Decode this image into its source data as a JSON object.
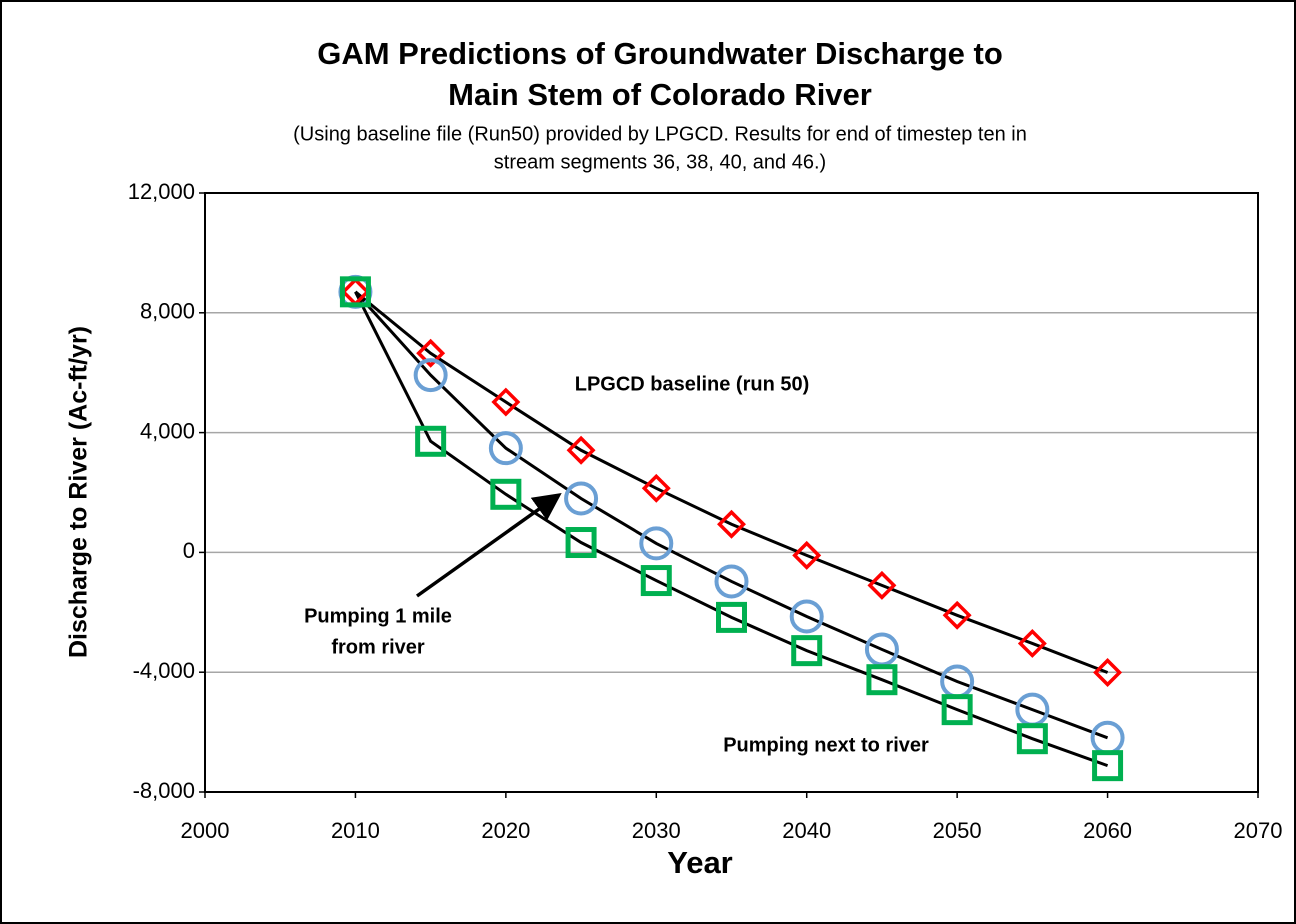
{
  "chart_data": {
    "type": "line",
    "title": [
      "GAM Predictions of Groundwater Discharge to",
      "Main Stem of Colorado River"
    ],
    "subtitle": [
      "(Using baseline file (Run50) provided by LPGCD. Results for end of timestep ten in",
      "stream segments 36, 38, 40, and 46.)"
    ],
    "x_label": "Year",
    "y_label": "Discharge to River (Ac-ft/yr)",
    "x": [
      2010,
      2015,
      2020,
      2025,
      2030,
      2035,
      2040,
      2045,
      2050,
      2055,
      2060
    ],
    "series": [
      {
        "name": "LPGCD baseline (run 50)",
        "color": "#ff0000",
        "marker": "diamond",
        "values": [
          8700,
          6650,
          5020,
          3410,
          2140,
          940,
          -100,
          -1100,
          -2100,
          -3040,
          -4010
        ]
      },
      {
        "name": "Pumping 1 mile from river",
        "color": "#6a9fd4",
        "marker": "circle",
        "values": [
          8700,
          5920,
          3480,
          1800,
          300,
          -970,
          -2140,
          -3240,
          -4310,
          -5250,
          -6190
        ]
      },
      {
        "name": "Pumping next to river",
        "color": "#00b050",
        "marker": "square",
        "values": [
          8700,
          3710,
          1940,
          330,
          -940,
          -2170,
          -3280,
          -4250,
          -5250,
          -6220,
          -7120
        ]
      }
    ],
    "line_color": "#000000",
    "annotations": [
      [
        "LPGCD baseline (run 50)"
      ],
      [
        "Pumping 1 mile",
        "from river"
      ],
      [
        "Pumping next to river"
      ]
    ],
    "xlim": [
      2000,
      2070
    ],
    "xticks": [
      2000,
      2010,
      2020,
      2030,
      2040,
      2050,
      2060,
      2070
    ],
    "ylim": [
      -8000,
      12000
    ],
    "yticks": [
      {
        "value": -8000,
        "label": "-8,000"
      },
      {
        "value": -4000,
        "label": "-4,000"
      },
      0,
      {
        "value": 4000,
        "label": "4,000"
      },
      {
        "value": 8000,
        "label": "8,000"
      },
      {
        "value": 12000,
        "label": "12,000"
      }
    ],
    "grid": true
  }
}
